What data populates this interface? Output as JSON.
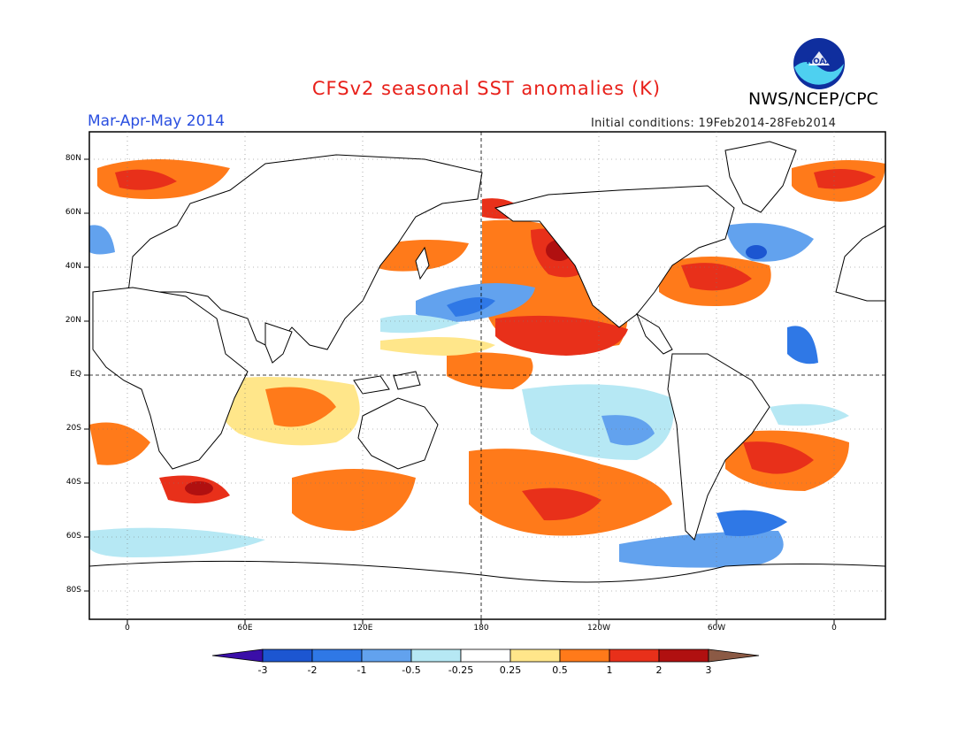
{
  "header": {
    "title": "CFSv2 seasonal SST anomalies (K)",
    "agency": "NWS/NCEP/CPC",
    "logo_text": "NOAA",
    "season": "Mar-Apr-May 2014",
    "initial_conditions": "Initial conditions: 19Feb2014-28Feb2014"
  },
  "map": {
    "lat_labels": [
      "80N",
      "60N",
      "40N",
      "20N",
      "EQ",
      "20S",
      "40S",
      "60S",
      "80S"
    ],
    "lon_labels": [
      "0",
      "60E",
      "120E",
      "180",
      "120W",
      "60W",
      "0"
    ]
  },
  "colorbar": {
    "labels": [
      "-3",
      "-2",
      "-1",
      "-0.5",
      "-0.25",
      "0.25",
      "0.5",
      "1",
      "2",
      "3"
    ],
    "colors": [
      "#3a0ea8",
      "#1c56d1",
      "#2f78e6",
      "#62a2ee",
      "#b6e8f4",
      "#ffffff",
      "#ffe68a",
      "#ff7a1a",
      "#e8301a",
      "#b01010",
      "#8b5a45"
    ]
  }
}
